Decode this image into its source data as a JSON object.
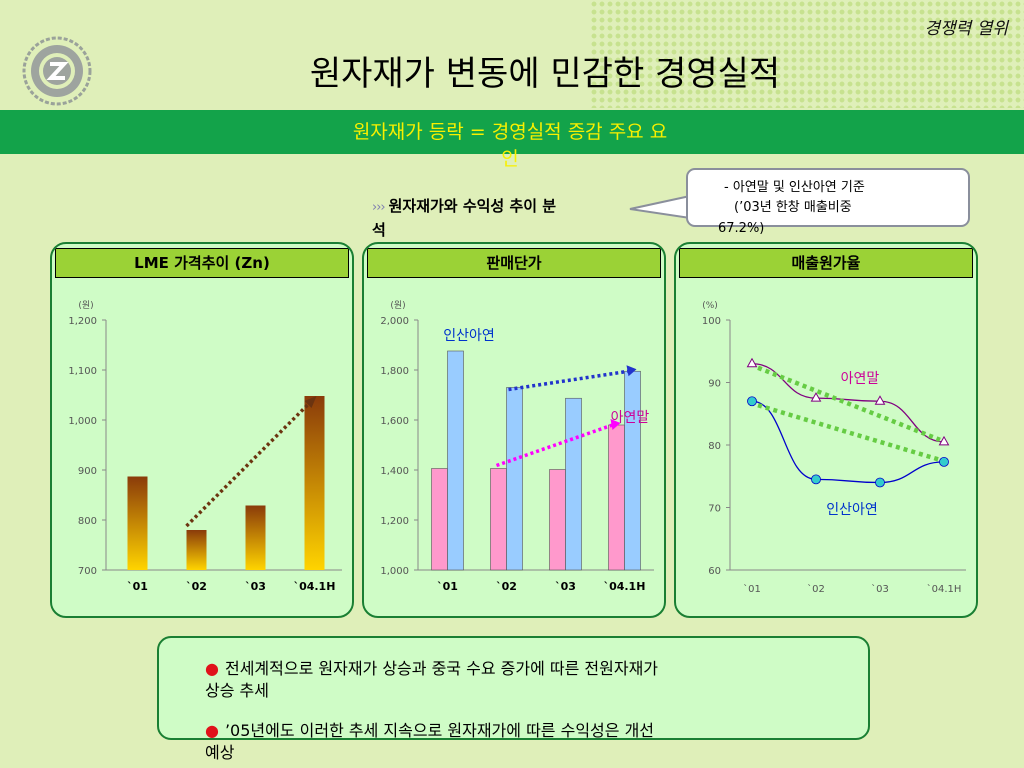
{
  "header": {
    "tagline": "경쟁력 열위",
    "title": "원자재가 변동에 민감한 경영실적",
    "band_line1": "원자재가 등락 = 경영실적 증감 주요 요",
    "band_line2": "인"
  },
  "subhead": {
    "arrows": "›››",
    "line1": "원자재가와 수익성 추이 분",
    "line2": "석"
  },
  "callout": {
    "line1": "- 아연말 및 인산아연 기준",
    "line2": "(’03년 한창 매출비중",
    "line3": "67.2%)"
  },
  "chart_data": [
    {
      "type": "bar",
      "title": "LME 가격추이 (Zn)",
      "ylabel": "(원)",
      "categories": [
        "`01",
        "`02",
        "`03",
        "`04.1H"
      ],
      "series": [
        {
          "values": [
            887,
            780,
            829,
            1048
          ]
        }
      ],
      "ylim": [
        700,
        1200
      ],
      "yticks": [
        "700",
        "800",
        "900",
        "1,000",
        "1,100",
        "1,200"
      ],
      "colors": {
        "top": "#8a3b0a",
        "bottom": "#ffd400",
        "trend": "#6b3410"
      }
    },
    {
      "type": "bar",
      "title": "판매단가",
      "ylabel": "(원)",
      "categories": [
        "`01",
        "`02",
        "`03",
        "`04.1H"
      ],
      "series": [
        {
          "name": "아연말",
          "values": [
            1406,
            1406,
            1402,
            1580
          ],
          "color": "#ff99cc",
          "label_color": "#cc0099"
        },
        {
          "name": "인산아연",
          "values": [
            1876,
            1730,
            1687,
            1795
          ],
          "color": "#99ccff",
          "label_color": "#0033cc"
        }
      ],
      "ylim": [
        1000,
        2000
      ],
      "yticks": [
        "1,000",
        "1,200",
        "1,400",
        "1,600",
        "1,800",
        "2,000"
      ],
      "trend_colors": {
        "아연말": "#ff00ff",
        "인산아연": "#2233cc"
      }
    },
    {
      "type": "line",
      "title": "매출원가율",
      "ylabel": "(%)",
      "categories": [
        "`01",
        "`02",
        "`03",
        "`04.1H"
      ],
      "series": [
        {
          "name": "아연말",
          "values": [
            93,
            87.5,
            87,
            80.5
          ],
          "color": "#800080",
          "marker": "#ffffff",
          "label_color": "#cc0099"
        },
        {
          "name": "인산아연",
          "values": [
            87,
            74.5,
            74,
            77.3
          ],
          "color": "#0000cc",
          "marker": "#33cccc",
          "label_color": "#0033cc"
        }
      ],
      "ylim": [
        60,
        100
      ],
      "yticks": [
        "60",
        "70",
        "80",
        "90",
        "100"
      ],
      "trend_color": "#66cc44"
    }
  ],
  "bullets": [
    {
      "marker": "●",
      "line1": "전세계적으로 원자재가 상승과 중국 수요 증가에 따른 전원자재가",
      "line2": "상승 추세"
    },
    {
      "marker": "●",
      "line1": "’05년에도 이러한 추세 지속으로 원자재가에 따른 수익성은 개선",
      "line2": "예상"
    }
  ]
}
